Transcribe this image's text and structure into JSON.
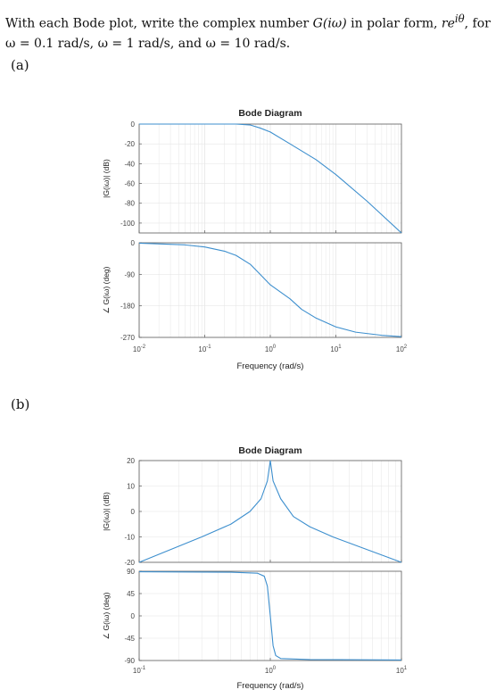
{
  "problem": {
    "line1_a": "With each Bode plot, write the complex number ",
    "line1_math": "G(iω)",
    "line1_b": " in polar form, ",
    "line1_math2": "re",
    "line1_sup": "iθ",
    "line1_c": ", for",
    "line2": "ω = 0.1 rad/s, ω = 1 rad/s, and ω = 10 rad/s."
  },
  "part_a_label": "(a)",
  "part_b_label": "(b)",
  "colors": {
    "trace": "#3d8fce",
    "axis": "#5a5a5a",
    "grid": "#e6e6e6"
  },
  "chart_data": [
    {
      "type": "line",
      "title": "Bode Diagram",
      "xlabel": "Frequency (rad/s)",
      "x_scale": "log",
      "x_ticks": [
        {
          "base": "10",
          "exp": "-2"
        },
        {
          "base": "10",
          "exp": "-1"
        },
        {
          "base": "10",
          "exp": "0"
        },
        {
          "base": "10",
          "exp": "1"
        },
        {
          "base": "10",
          "exp": "2"
        }
      ],
      "magnitude": {
        "ylabel": "|G(iω)| (dB)",
        "ylim": [
          -110,
          0
        ],
        "yticks": [
          "0",
          "-20",
          "-40",
          "-60",
          "-80",
          "-100"
        ],
        "x": [
          0.01,
          0.1,
          0.3,
          0.5,
          0.7,
          1,
          2,
          5,
          10,
          30,
          100
        ],
        "y": [
          0,
          0,
          0,
          -1,
          -4,
          -8,
          -20,
          -36,
          -51,
          -78,
          -110
        ]
      },
      "phase": {
        "ylabel": "∠ G(iω) (deg)",
        "ylim": [
          -270,
          0
        ],
        "yticks": [
          "0",
          "-90",
          "-180",
          "-270"
        ],
        "x": [
          0.01,
          0.05,
          0.1,
          0.2,
          0.3,
          0.5,
          0.7,
          1,
          2,
          3,
          5,
          10,
          20,
          50,
          100
        ],
        "y": [
          -1,
          -6,
          -12,
          -24,
          -36,
          -62,
          -90,
          -120,
          -160,
          -190,
          -215,
          -240,
          -255,
          -264,
          -268
        ]
      }
    },
    {
      "type": "line",
      "title": "Bode Diagram",
      "xlabel": "Frequency (rad/s)",
      "x_scale": "log",
      "x_ticks": [
        {
          "base": "10",
          "exp": "-1"
        },
        {
          "base": "10",
          "exp": "0"
        },
        {
          "base": "10",
          "exp": "1"
        }
      ],
      "magnitude": {
        "ylabel": "|G(iω)| (dB)",
        "ylim": [
          -20,
          20
        ],
        "yticks": [
          "20",
          "10",
          "0",
          "-10",
          "-20"
        ],
        "x": [
          0.1,
          0.3,
          0.5,
          0.7,
          0.85,
          0.95,
          1,
          1.05,
          1.2,
          1.5,
          2,
          3,
          10
        ],
        "y": [
          -20,
          -10,
          -5,
          0,
          5,
          12,
          20,
          12,
          5,
          -2,
          -6,
          -10,
          -20
        ]
      },
      "phase": {
        "ylabel": "∠ G(iω) (deg)",
        "ylim": [
          -90,
          90
        ],
        "yticks": [
          "90",
          "45",
          "0",
          "-45",
          "-90"
        ],
        "x": [
          0.1,
          0.5,
          0.8,
          0.9,
          0.95,
          1,
          1.05,
          1.1,
          1.2,
          2,
          10
        ],
        "y": [
          89,
          88,
          86,
          80,
          60,
          0,
          -60,
          -80,
          -86,
          -88,
          -89
        ]
      }
    }
  ]
}
